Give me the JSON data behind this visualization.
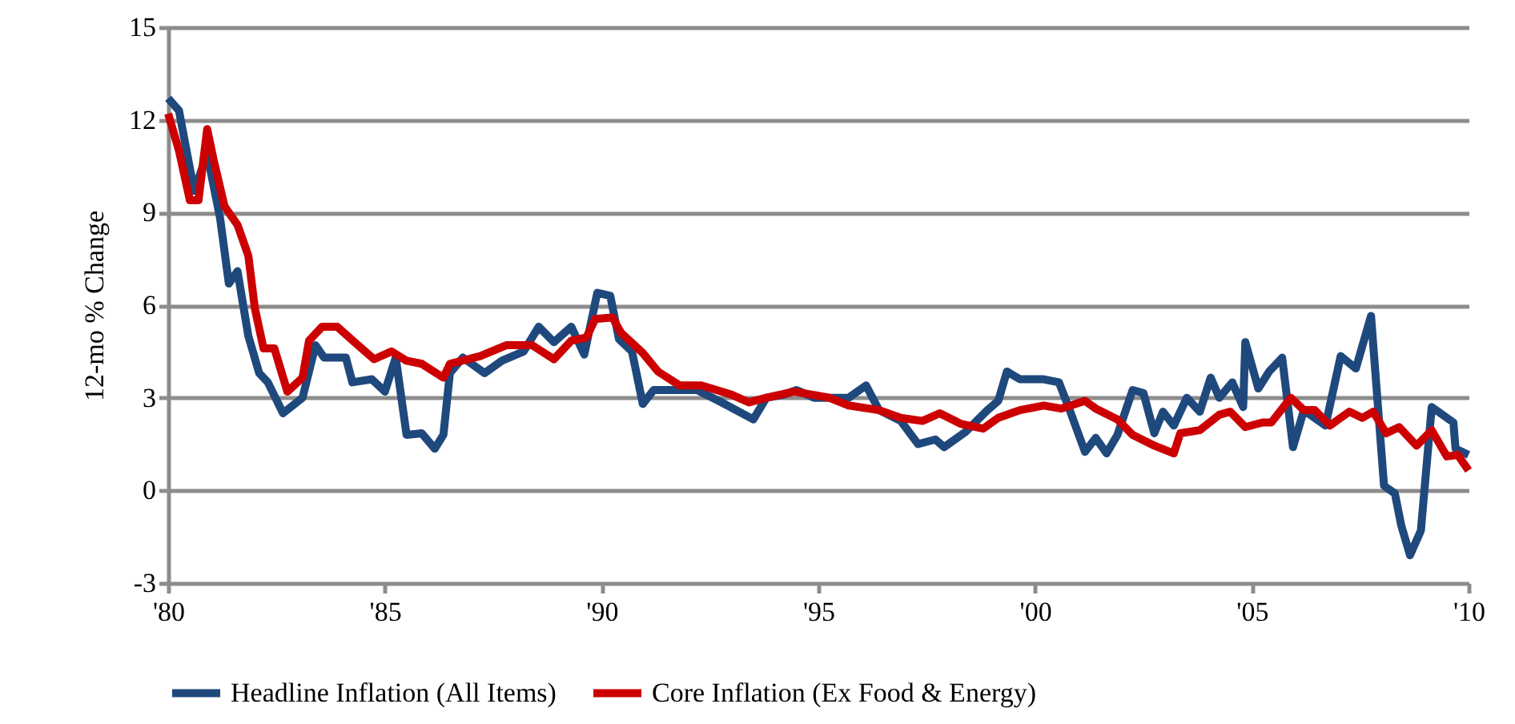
{
  "chart_data": {
    "type": "line",
    "ylabel": "12-mo % Change",
    "xlim": [
      1980,
      2010
    ],
    "xticks": [
      {
        "value": 1980,
        "label": "'80"
      },
      {
        "value": 1985,
        "label": "'85"
      },
      {
        "value": 1990,
        "label": "'90"
      },
      {
        "value": 1995,
        "label": "'95"
      },
      {
        "value": 2000,
        "label": "'00"
      },
      {
        "value": 2005,
        "label": "'05"
      },
      {
        "value": 2010,
        "label": "'10"
      }
    ],
    "ylim": [
      -3,
      15
    ],
    "yticks": [
      -3,
      0,
      3,
      6,
      9,
      12,
      15
    ],
    "grid": "y",
    "legend": "bottom",
    "marker": "none",
    "line_style": "solid",
    "series": [
      {
        "name": "Headline Inflation (All Items)",
        "color": "#1f497d",
        "x": [
          1980.0,
          1980.25,
          1980.6,
          1980.9,
          1981.2,
          1981.4,
          1981.6,
          1981.85,
          1982.1,
          1982.3,
          1982.65,
          1983.1,
          1983.4,
          1983.6,
          1984.1,
          1984.25,
          1984.7,
          1985.0,
          1985.25,
          1985.5,
          1985.85,
          1986.15,
          1986.35,
          1986.5,
          1986.8,
          1987.3,
          1987.7,
          1988.2,
          1988.55,
          1988.9,
          1989.3,
          1989.6,
          1989.9,
          1990.2,
          1990.4,
          1990.7,
          1990.95,
          1991.2,
          1991.7,
          1992.2,
          1992.7,
          1993.5,
          1993.8,
          1994.2,
          1994.5,
          1994.9,
          1995.7,
          1996.1,
          1996.4,
          1996.9,
          1997.3,
          1997.7,
          1997.9,
          1998.4,
          1998.9,
          1999.15,
          1999.35,
          1999.65,
          2000.2,
          2000.55,
          2000.8,
          2001.15,
          2001.4,
          2001.65,
          2001.9,
          2002.25,
          2002.5,
          2002.75,
          2002.95,
          2003.2,
          2003.5,
          2003.8,
          2004.05,
          2004.25,
          2004.55,
          2004.8,
          2004.85,
          2005.15,
          2005.4,
          2005.7,
          2005.95,
          2006.2,
          2006.7,
          2007.05,
          2007.4,
          2007.75,
          2008.05,
          2008.3,
          2008.45,
          2008.65,
          2008.9,
          2009.15,
          2009.65,
          2009.7,
          2010.0
        ],
        "values": [
          12.7,
          12.3,
          9.7,
          10.9,
          8.8,
          6.7,
          7.1,
          5.0,
          3.8,
          3.5,
          2.5,
          3.0,
          4.7,
          4.3,
          4.3,
          3.5,
          3.6,
          3.2,
          4.3,
          1.8,
          1.85,
          1.35,
          1.8,
          3.8,
          4.3,
          3.8,
          4.2,
          4.5,
          5.3,
          4.8,
          5.3,
          4.4,
          6.4,
          6.3,
          4.9,
          4.5,
          2.8,
          3.25,
          3.25,
          3.25,
          2.9,
          2.3,
          3.0,
          3.1,
          3.25,
          3.0,
          3.0,
          3.4,
          2.6,
          2.25,
          1.5,
          1.65,
          1.4,
          1.9,
          2.6,
          2.9,
          3.85,
          3.6,
          3.6,
          3.5,
          2.6,
          1.25,
          1.7,
          1.2,
          1.8,
          3.25,
          3.15,
          1.85,
          2.55,
          2.1,
          3.0,
          2.55,
          3.65,
          3.0,
          3.5,
          2.7,
          4.8,
          3.3,
          3.85,
          4.3,
          1.4,
          2.6,
          2.1,
          4.35,
          3.95,
          5.65,
          0.15,
          -0.1,
          -1.15,
          -2.1,
          -1.3,
          2.7,
          2.2,
          1.35,
          1.15
        ]
      },
      {
        "name": "Core Inflation (Ex Food & Energy)",
        "color": "#cc0000",
        "x": [
          1980.0,
          1980.25,
          1980.5,
          1980.7,
          1980.9,
          1981.05,
          1981.3,
          1981.6,
          1981.85,
          1982.0,
          1982.2,
          1982.45,
          1982.75,
          1983.1,
          1983.25,
          1983.55,
          1983.9,
          1984.3,
          1984.75,
          1985.15,
          1985.5,
          1985.85,
          1986.35,
          1986.5,
          1987.2,
          1987.8,
          1988.4,
          1988.9,
          1989.3,
          1989.65,
          1989.85,
          1990.25,
          1990.45,
          1990.95,
          1991.3,
          1991.8,
          1992.3,
          1993.0,
          1993.4,
          1993.8,
          1994.45,
          1995.25,
          1995.7,
          1996.4,
          1996.9,
          1997.4,
          1997.8,
          1998.3,
          1998.8,
          1999.15,
          1999.65,
          2000.2,
          2000.6,
          2001.15,
          2001.4,
          2001.9,
          2002.25,
          2002.75,
          2003.2,
          2003.35,
          2003.8,
          2004.25,
          2004.5,
          2004.85,
          2005.25,
          2005.45,
          2005.9,
          2006.2,
          2006.45,
          2006.8,
          2007.25,
          2007.55,
          2007.8,
          2008.1,
          2008.4,
          2008.8,
          2009.15,
          2009.5,
          2009.75,
          2010.0
        ],
        "values": [
          12.2,
          11.0,
          9.4,
          9.4,
          11.7,
          10.7,
          9.2,
          8.6,
          7.6,
          5.9,
          4.6,
          4.6,
          3.2,
          3.65,
          4.85,
          5.3,
          5.3,
          4.8,
          4.25,
          4.5,
          4.2,
          4.1,
          3.65,
          4.1,
          4.35,
          4.7,
          4.7,
          4.25,
          4.85,
          4.95,
          5.55,
          5.6,
          5.1,
          4.45,
          3.85,
          3.4,
          3.4,
          3.1,
          2.85,
          3.0,
          3.2,
          3.0,
          2.75,
          2.6,
          2.35,
          2.25,
          2.5,
          2.15,
          2.0,
          2.35,
          2.6,
          2.75,
          2.65,
          2.9,
          2.65,
          2.3,
          1.8,
          1.45,
          1.2,
          1.85,
          1.95,
          2.45,
          2.55,
          2.05,
          2.2,
          2.2,
          3.0,
          2.6,
          2.6,
          2.1,
          2.55,
          2.35,
          2.55,
          1.85,
          2.05,
          1.45,
          1.95,
          1.1,
          1.15,
          0.65
        ]
      }
    ]
  }
}
